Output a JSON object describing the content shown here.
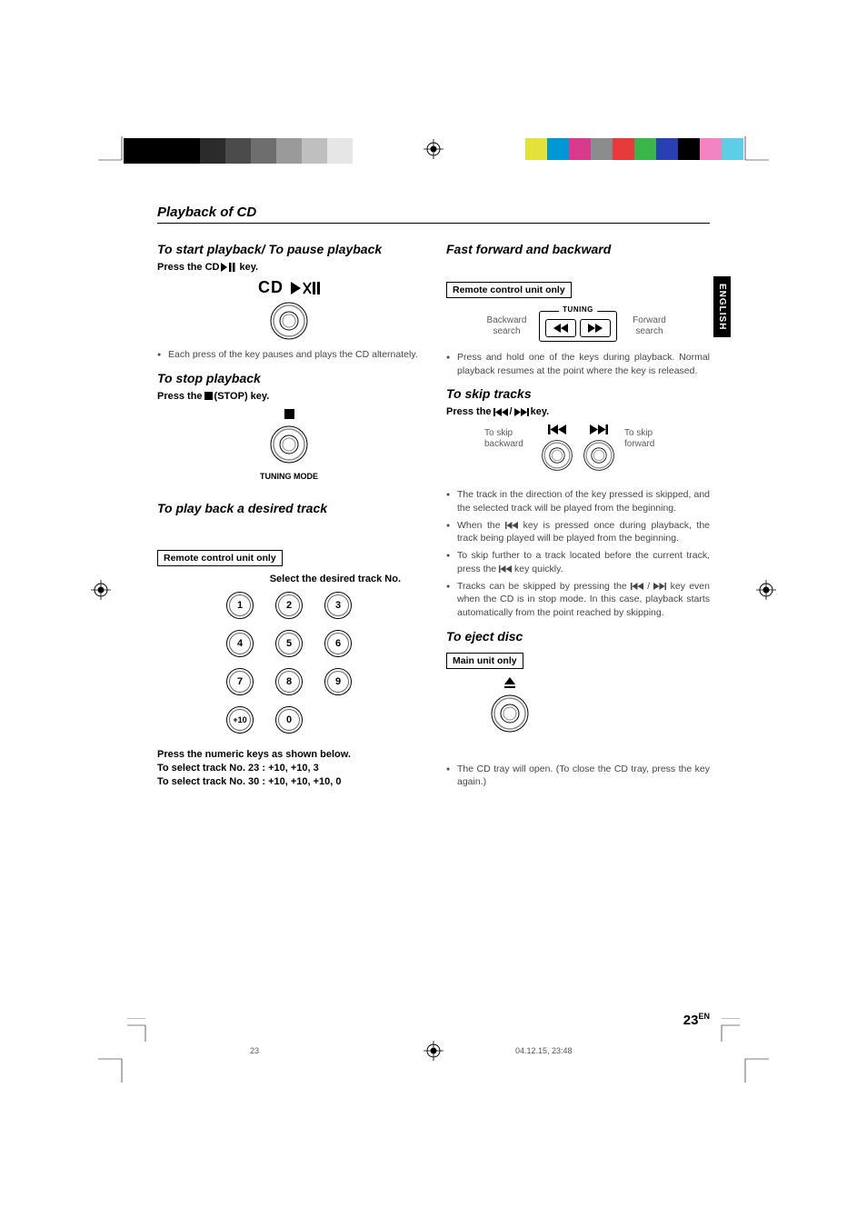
{
  "colorbar_left": [
    "#000000",
    "#000000",
    "#000000",
    "#2b2b2b",
    "#4b4b4b",
    "#6e6e6e",
    "#9a9a9a",
    "#bfbfbf",
    "#e6e6e6"
  ],
  "colorbar_right": [
    "#e2e23a",
    "#0097d6",
    "#d93a8c",
    "#8c8c8c",
    "#e73a3a",
    "#3ab54a",
    "#2b3fb5",
    "#000000",
    "#f285c1",
    "#5ecde6"
  ],
  "lang_tab": "ENGLISH",
  "page_number": "23",
  "page_number_suffix": "EN",
  "meta_center": "23",
  "meta_right": "04.12.15, 23:48",
  "main": {
    "section": "Playback of CD",
    "left": {
      "s1_title": "To start playback/ To pause playback",
      "s1_press_a": "Press the CD ",
      "s1_press_b": " key.",
      "cd_label_a": "CD",
      "s1_bullet": "Each press of the key pauses and plays the CD alternately.",
      "s2_title": "To stop playback",
      "s2_press_a": "Press the ",
      "s2_press_b": " (STOP) key.",
      "s2_caption": "TUNING MODE",
      "s3_title": "To play back a desired track",
      "s3_box": "Remote control unit only",
      "s3_select": "Select the desired track No.",
      "keypad": [
        "1",
        "2",
        "3",
        "4",
        "5",
        "6",
        "7",
        "8",
        "9",
        "+10",
        "0"
      ],
      "s3_line1": "Press the numeric keys as shown below.",
      "s3_line2": "To select track No. 23 : +10, +10, 3",
      "s3_line3": "To select track No. 30 : +10, +10, +10, 0"
    },
    "right": {
      "s1_title": "Fast forward and backward",
      "s1_box": "Remote control unit only",
      "tuning_label": "TUNING",
      "bwd_a": "Backward",
      "bwd_b": "search",
      "fwd_a": "Forward",
      "fwd_b": "search",
      "s1_bullet": "Press and hold one of the keys during playback. Normal playback resumes at the point where the key is released.",
      "s2_title": "To skip tracks",
      "s2_press_a": "Press the ",
      "s2_press_b": " / ",
      "s2_press_c": " key.",
      "skip_bwd_a": "To skip",
      "skip_bwd_b": "backward",
      "skip_fwd_a": "To skip",
      "skip_fwd_b": "forward",
      "s2_bullets_a": "The track in the direction of the key pressed is skipped, and the selected track will be played from the beginning.",
      "s2_bullets_b1": "When the ",
      "s2_bullets_b2": " key is pressed once during playback, the track being played will be played from the beginning.",
      "s2_bullets_c1": "To skip further to a track located before the current track, press the ",
      "s2_bullets_c2": " key quickly.",
      "s2_bullets_d1": "Tracks can be skipped by pressing the ",
      "s2_bullets_d2": " / ",
      "s2_bullets_d3": " key even when the CD is in stop mode. In this case, playback starts automatically from the point reached by skipping.",
      "s3_title": "To eject disc",
      "s3_box": "Main unit only",
      "s3_bullet": "The CD tray will open. (To close the CD tray, press the key again.)"
    }
  }
}
